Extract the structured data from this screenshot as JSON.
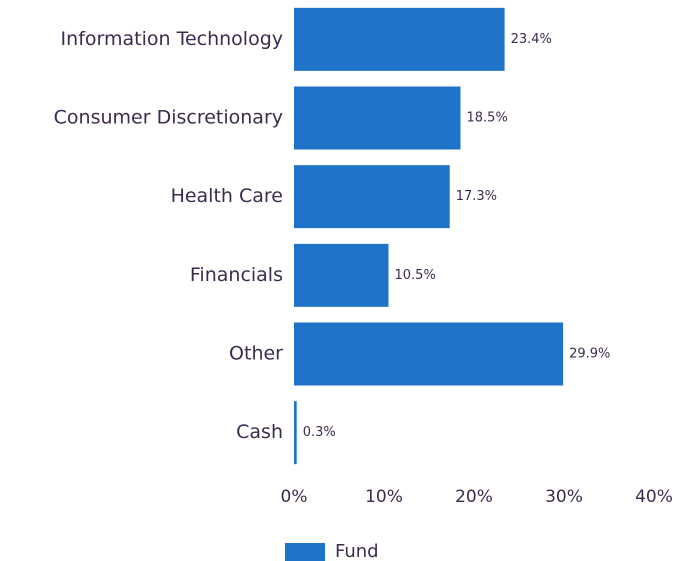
{
  "chart_data": {
    "type": "bar",
    "orientation": "horizontal",
    "categories": [
      "Information Technology",
      "Consumer Discretionary",
      "Health Care",
      "Financials",
      "Other",
      "Cash"
    ],
    "series": [
      {
        "name": "Fund",
        "color": "#1f73c9",
        "values": [
          23.4,
          18.5,
          17.3,
          10.5,
          29.9,
          0.3
        ],
        "value_labels": [
          "23.4%",
          "18.5%",
          "17.3%",
          "10.5%",
          "29.9%",
          "0.3%"
        ]
      }
    ],
    "xlim": [
      0,
      40
    ],
    "xticks": [
      {
        "value": 0,
        "label": "0%"
      },
      {
        "value": 10,
        "label": "10%"
      },
      {
        "value": 20,
        "label": "20%"
      },
      {
        "value": 30,
        "label": "30%"
      },
      {
        "value": 40,
        "label": "40%"
      }
    ],
    "grid": false,
    "legend": "bottom"
  }
}
